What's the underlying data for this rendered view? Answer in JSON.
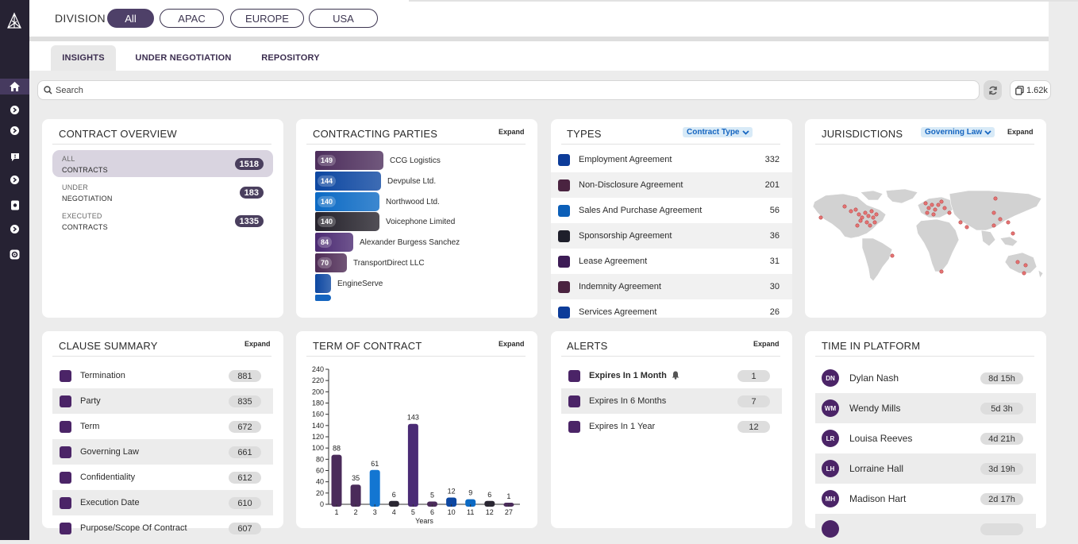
{
  "division": {
    "label": "DIVISION",
    "options": [
      {
        "label": "All",
        "active": true
      },
      {
        "label": "APAC",
        "active": false
      },
      {
        "label": "EUROPE",
        "active": false
      },
      {
        "label": "USA",
        "active": false
      }
    ]
  },
  "tabs": [
    {
      "label": "INSIGHTS",
      "active": true
    },
    {
      "label": "UNDER NEGOTIATION",
      "active": false
    },
    {
      "label": "REPOSITORY",
      "active": false
    }
  ],
  "search": {
    "placeholder": "Search"
  },
  "toolbar": {
    "count_label": "1.62k"
  },
  "contract_overview": {
    "title": "CONTRACT OVERVIEW",
    "rows": [
      {
        "line1": "ALL",
        "line2": "CONTRACTS",
        "count": "1518",
        "selected": true
      },
      {
        "line1": "UNDER",
        "line2": "NEGOTIATION",
        "count": "183",
        "selected": false
      },
      {
        "line1": "EXECUTED",
        "line2": "CONTRACTS",
        "count": "1335",
        "selected": false
      }
    ]
  },
  "contracting_parties": {
    "title": "CONTRACTING PARTIES",
    "expand_label": "Expand",
    "max_value": 149,
    "parties": [
      {
        "name": "CCG Logistics",
        "value": 149,
        "color": "#4d2e5c"
      },
      {
        "name": "Devpulse Ltd.",
        "value": 144,
        "color": "#0d47a1"
      },
      {
        "name": "Northwood Ltd.",
        "value": 140,
        "color": "#0c6ac4"
      },
      {
        "name": "Voicephone Limited",
        "value": 140,
        "color": "#26232c"
      },
      {
        "name": "Alexander Burgess Sanchez",
        "value": 84,
        "color": "#4b2a72"
      },
      {
        "name": "TransportDirect LLC",
        "value": 70,
        "color": "#4e2b55"
      },
      {
        "name": "EngineServe",
        "value": null,
        "color": "#0d47a1"
      }
    ]
  },
  "types": {
    "title": "TYPES",
    "dropdown_label": "Contract Type",
    "rows": [
      {
        "name": "Employment Agreement",
        "count": "332",
        "color": "#0d3c99"
      },
      {
        "name": "Non-Disclosure Agreement",
        "count": "201",
        "color": "#4a2340"
      },
      {
        "name": "Sales And Purchase Agreement",
        "count": "56",
        "color": "#0c5fb8"
      },
      {
        "name": "Sponsorship Agreement",
        "count": "36",
        "color": "#1e1f2b"
      },
      {
        "name": "Lease Agreement",
        "count": "31",
        "color": "#3d1c55"
      },
      {
        "name": "Indemnity Agreement",
        "count": "30",
        "color": "#4a2340"
      },
      {
        "name": "Services Agreement",
        "count": "26",
        "color": "#0d3c99"
      }
    ]
  },
  "jurisdictions": {
    "title": "JURISDICTIONS",
    "dropdown_label": "Governing Law",
    "expand_label": "Expand"
  },
  "clause_summary": {
    "title": "CLAUSE SUMMARY",
    "expand_label": "Expand",
    "rows": [
      {
        "name": "Termination",
        "count": "881"
      },
      {
        "name": "Party",
        "count": "835"
      },
      {
        "name": "Term",
        "count": "672"
      },
      {
        "name": "Governing Law",
        "count": "661"
      },
      {
        "name": "Confidentiality",
        "count": "612"
      },
      {
        "name": "Execution Date",
        "count": "610"
      },
      {
        "name": "Purpose/Scope Of Contract",
        "count": "607"
      }
    ]
  },
  "term_of_contract": {
    "title": "TERM OF CONTRACT",
    "expand_label": "Expand"
  },
  "chart_data": {
    "type": "bar",
    "title": "TERM OF CONTRACT",
    "xlabel": "Years",
    "ylabel": "",
    "ylim": [
      0,
      240
    ],
    "yticks": [
      0,
      20,
      40,
      60,
      80,
      100,
      120,
      140,
      160,
      180,
      200,
      220,
      240
    ],
    "categories": [
      "1",
      "2",
      "3",
      "4",
      "5",
      "6",
      "10",
      "11",
      "12",
      "27"
    ],
    "values": [
      88,
      35,
      61,
      6,
      143,
      5,
      12,
      9,
      6,
      1
    ],
    "colors": [
      "#4a2b5a",
      "#4a2b5a",
      "#1376d2",
      "#2a2632",
      "#4a2b75",
      "#4a2b5a",
      "#0d47a1",
      "#0c6ac4",
      "#2a2632",
      "#4a2b5a"
    ],
    "grid": false
  },
  "alerts": {
    "title": "ALERTS",
    "expand_label": "Expand",
    "rows": [
      {
        "name": "Expires In 1 Month",
        "count": "1",
        "bold": true
      },
      {
        "name": "Expires In 6 Months",
        "count": "7",
        "bold": false
      },
      {
        "name": "Expires In 1 Year",
        "count": "12",
        "bold": false
      }
    ]
  },
  "time_in_platform": {
    "title": "TIME IN PLATFORM",
    "rows": [
      {
        "initials": "DN",
        "name": "Dylan Nash",
        "time": "8d 15h"
      },
      {
        "initials": "WM",
        "name": "Wendy Mills",
        "time": "5d 3h"
      },
      {
        "initials": "LR",
        "name": "Louisa Reeves",
        "time": "4d 21h"
      },
      {
        "initials": "LH",
        "name": "Lorraine Hall",
        "time": "3d 19h"
      },
      {
        "initials": "MH",
        "name": "Madison Hart",
        "time": "2d 17h"
      },
      {
        "initials": "",
        "name": "",
        "time": ""
      }
    ]
  }
}
